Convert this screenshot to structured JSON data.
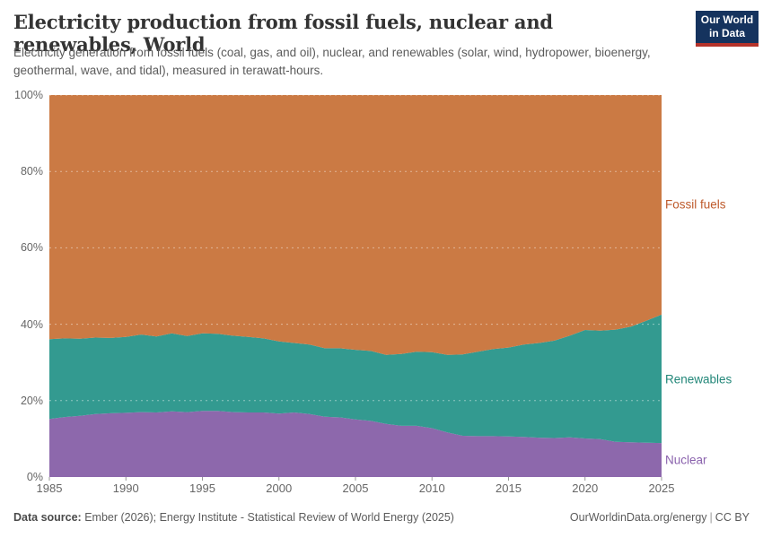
{
  "header": {
    "title": "Electricity production from fossil fuels, nuclear and renewables, World",
    "subtitle": "Electricity generation from fossil fuels (coal, gas, and oil), nuclear, and renewables (solar, wind, hydropower, bioenergy, geothermal, wave, and tidal), measured in terawatt-hours.",
    "logo": {
      "line1": "Our World",
      "line2": "in Data",
      "bg_color": "#15335E",
      "stripe_color": "#B5332B"
    }
  },
  "chart_data": {
    "type": "area",
    "stacked_percent": true,
    "title": "Electricity production from fossil fuels, nuclear and renewables, World",
    "xlabel": "",
    "ylabel": "",
    "x_range": [
      1985,
      2025
    ],
    "y_range_percent": [
      0,
      100
    ],
    "grid": "dashed-horizontal",
    "legend_position": "right-of-area",
    "x": [
      1985,
      1986,
      1987,
      1988,
      1989,
      1990,
      1991,
      1992,
      1993,
      1994,
      1995,
      1996,
      1997,
      1998,
      1999,
      2000,
      2001,
      2002,
      2003,
      2004,
      2005,
      2006,
      2007,
      2008,
      2009,
      2010,
      2011,
      2012,
      2013,
      2014,
      2015,
      2016,
      2017,
      2018,
      2019,
      2020,
      2021,
      2022,
      2023,
      2024,
      2025
    ],
    "series": [
      {
        "name": "Nuclear",
        "color": "#8D68AC",
        "label_color": "#8A62AD",
        "values": [
          15.2,
          15.7,
          16.0,
          16.5,
          16.7,
          16.8,
          17.0,
          16.9,
          17.2,
          17.0,
          17.3,
          17.3,
          17.0,
          16.9,
          16.9,
          16.6,
          16.9,
          16.5,
          15.8,
          15.6,
          15.1,
          14.7,
          13.9,
          13.4,
          13.4,
          12.8,
          11.7,
          10.8,
          10.7,
          10.7,
          10.6,
          10.5,
          10.3,
          10.2,
          10.4,
          10.1,
          9.9,
          9.2,
          9.1,
          9.0,
          8.9
        ]
      },
      {
        "name": "Renewables",
        "color": "#339A90",
        "label_color": "#238779",
        "values": [
          20.9,
          20.6,
          20.2,
          20.0,
          19.7,
          19.9,
          20.3,
          19.9,
          20.4,
          19.9,
          20.3,
          20.2,
          20.0,
          19.8,
          19.4,
          18.9,
          18.2,
          18.2,
          17.9,
          18.1,
          18.2,
          18.3,
          18.1,
          18.8,
          19.4,
          19.9,
          20.3,
          21.3,
          22.1,
          22.8,
          23.3,
          24.2,
          24.8,
          25.5,
          26.6,
          28.4,
          28.4,
          29.4,
          30.3,
          31.9,
          33.6
        ]
      },
      {
        "name": "Fossil fuels",
        "color": "#CB7A44",
        "label_color": "#BE5A2B",
        "values": [
          63.9,
          63.7,
          63.8,
          63.5,
          63.6,
          63.3,
          62.7,
          63.2,
          62.4,
          63.1,
          62.4,
          62.5,
          63.0,
          63.3,
          63.7,
          64.5,
          64.9,
          65.3,
          66.3,
          66.3,
          66.7,
          67.0,
          68.0,
          67.8,
          67.2,
          67.3,
          68.0,
          67.9,
          67.2,
          66.5,
          66.1,
          65.3,
          64.9,
          64.3,
          63.0,
          61.5,
          61.7,
          61.4,
          60.6,
          59.1,
          57.5
        ]
      }
    ],
    "x_ticks": [
      1985,
      1990,
      1995,
      2000,
      2005,
      2010,
      2015,
      2020,
      2025
    ],
    "y_ticks": [
      0,
      20,
      40,
      60,
      80,
      100
    ],
    "y_tick_suffix": "%"
  },
  "footer": {
    "source_label": "Data source:",
    "source_text": "Ember (2026); Energy Institute - Statistical Review of World Energy (2025)",
    "url": "OurWorldinData.org/energy",
    "separator": "|",
    "license": "CC BY"
  }
}
